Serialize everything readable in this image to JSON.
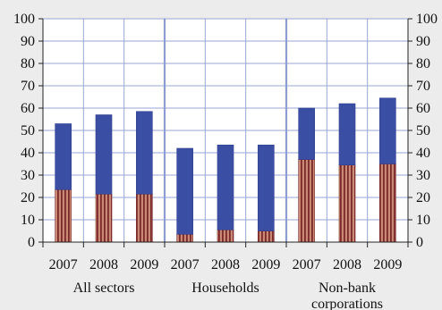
{
  "chart_data": {
    "type": "bar",
    "stacked": true,
    "title": "",
    "xlabel": "",
    "ylabel": "",
    "ylim": [
      0,
      100
    ],
    "yticks": [
      0,
      10,
      20,
      30,
      40,
      50,
      60,
      70,
      80,
      90,
      100
    ],
    "grid": true,
    "legend": "none",
    "groups": [
      {
        "label": "All sectors",
        "categories": [
          "2007",
          "2008",
          "2009"
        ]
      },
      {
        "label": "Households",
        "categories": [
          "2007",
          "2008",
          "2009"
        ]
      },
      {
        "label": "Non-bank corporations",
        "label_lines": [
          "Non-bank",
          "corporations"
        ],
        "categories": [
          "2007",
          "2008",
          "2009"
        ]
      }
    ],
    "categories": [
      "2007",
      "2008",
      "2009",
      "2007",
      "2008",
      "2009",
      "2007",
      "2008",
      "2009"
    ],
    "series": [
      {
        "color": "#b46e5a",
        "values": [
          23.5,
          21.5,
          21.5,
          3.5,
          5.5,
          5.0,
          37.0,
          34.5,
          35.0
        ]
      },
      {
        "color": "#3a4ea3",
        "values": [
          29.5,
          35.5,
          37.0,
          38.5,
          38.0,
          38.5,
          23.0,
          27.5,
          29.5
        ]
      }
    ]
  }
}
